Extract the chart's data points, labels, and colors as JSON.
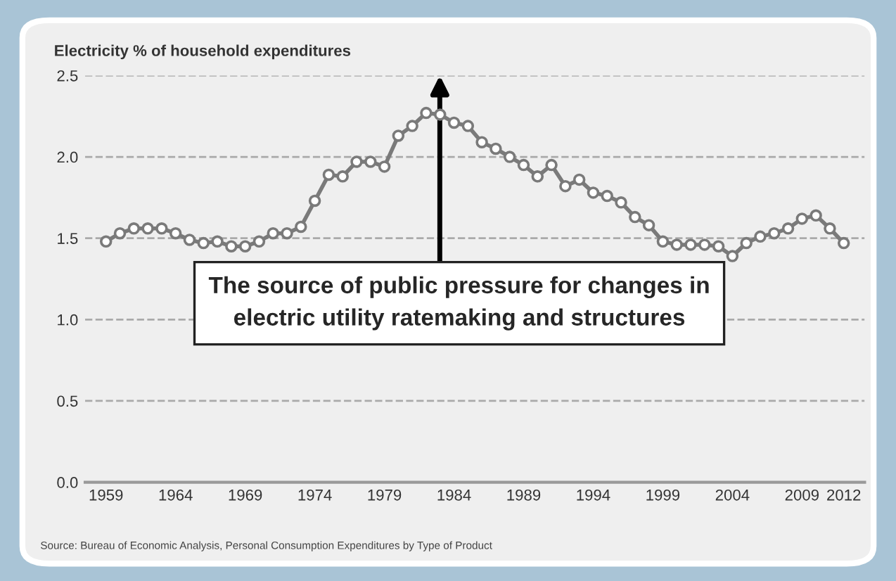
{
  "chart_data": {
    "type": "line",
    "title": "Electricity % of household expenditures",
    "x": [
      1959,
      1960,
      1961,
      1962,
      1963,
      1964,
      1965,
      1966,
      1967,
      1968,
      1969,
      1970,
      1971,
      1972,
      1973,
      1974,
      1975,
      1976,
      1977,
      1978,
      1979,
      1980,
      1981,
      1982,
      1983,
      1984,
      1985,
      1986,
      1987,
      1988,
      1989,
      1990,
      1991,
      1992,
      1993,
      1994,
      1995,
      1996,
      1997,
      1998,
      1999,
      2000,
      2001,
      2002,
      2003,
      2004,
      2005,
      2006,
      2007,
      2008,
      2009,
      2010,
      2011,
      2012
    ],
    "series": [
      {
        "color": "#7a7a7a",
        "values": [
          1.48,
          1.53,
          1.56,
          1.56,
          1.56,
          1.53,
          1.49,
          1.47,
          1.48,
          1.45,
          1.45,
          1.48,
          1.53,
          1.53,
          1.57,
          1.73,
          1.89,
          1.88,
          1.97,
          1.97,
          1.94,
          2.13,
          2.19,
          2.27,
          2.26,
          2.21,
          2.19,
          2.09,
          2.05,
          2.0,
          1.95,
          1.88,
          1.95,
          1.82,
          1.86,
          1.78,
          1.76,
          1.72,
          1.63,
          1.58,
          1.48,
          1.46,
          1.46,
          1.46,
          1.45,
          1.39,
          1.47,
          1.51,
          1.53,
          1.56,
          1.62,
          1.64,
          1.56,
          1.47
        ]
      }
    ],
    "xlim": [
      1957.5,
      2013.5
    ],
    "xticks": [
      1959,
      1964,
      1969,
      1974,
      1979,
      1984,
      1989,
      1994,
      1999,
      2004,
      2009,
      2012
    ],
    "ylim": [
      0,
      2.5
    ],
    "yticks": [
      {
        "value": 0,
        "label": "0.0"
      },
      0.5,
      {
        "value": 1,
        "label": "1.0"
      },
      1.5,
      {
        "value": 2,
        "label": "2.0"
      },
      2.5
    ],
    "grid": "y",
    "marker": "circle",
    "line_style": "solid",
    "annotations": [
      "The source of public pressure for changes in\nelectric utility ratemaking and structures",
      "Source: Bureau of Economic Analysis, Personal Consumption Expenditures by Type of Product"
    ]
  }
}
